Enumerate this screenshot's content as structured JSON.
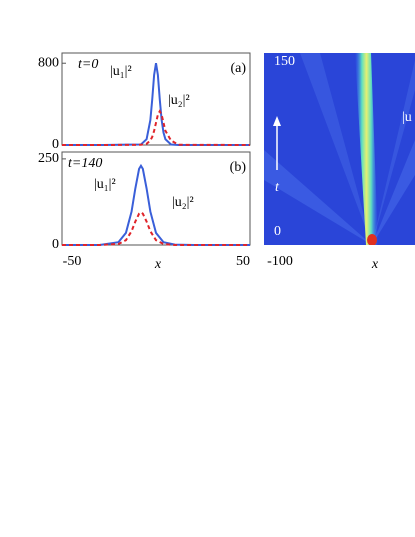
{
  "chart_data": [
    {
      "type": "line",
      "panel_label": "(a)",
      "time_label": "t=0",
      "x": [
        -50,
        -28,
        -8,
        -5,
        -3,
        -2,
        -1,
        0,
        1,
        2,
        3,
        4,
        5,
        8,
        12,
        50
      ],
      "series": [
        {
          "name": "|u₁|²",
          "color": "#3a5fd9",
          "dash": false,
          "values": [
            0,
            0,
            5,
            57,
            244,
            447,
            685,
            800,
            685,
            447,
            244,
            121,
            57,
            5,
            0,
            0
          ]
        },
        {
          "name": "|u₂|²",
          "color": "#e0242a",
          "dash": true,
          "values": [
            0,
            0,
            2,
            12,
            44,
            80,
            139,
            217,
            296,
            330,
            296,
            217,
            139,
            44,
            2,
            0
          ]
        }
      ],
      "xlim": [
        -50,
        50
      ],
      "ylim": [
        0,
        900
      ],
      "yticks": [
        0,
        800
      ]
    },
    {
      "type": "line",
      "panel_label": "(b)",
      "time_label": "t=140",
      "xlabel": "x",
      "x": [
        -50,
        -30,
        -20,
        -16,
        -13,
        -11,
        -9,
        -8,
        -7,
        -5,
        -3,
        0,
        4,
        10,
        20,
        50
      ],
      "series": [
        {
          "name": "|u₁|²",
          "color": "#3a5fd9",
          "dash": false,
          "values": [
            0,
            0,
            8,
            35,
            97,
            164,
            221,
            230,
            221,
            164,
            97,
            35,
            8,
            1,
            0,
            0
          ]
        },
        {
          "name": "|u₂|²",
          "color": "#e0242a",
          "dash": true,
          "values": [
            0,
            0,
            3,
            14,
            40,
            68,
            91,
            95,
            91,
            68,
            40,
            14,
            3,
            0,
            0,
            0
          ]
        }
      ],
      "xlim": [
        -50,
        50
      ],
      "ylim": [
        0,
        270
      ],
      "yticks": [
        0,
        250
      ],
      "xticks": [
        -50,
        50
      ]
    },
    {
      "type": "heatmap",
      "xlabel": "x",
      "ylabel": "t",
      "colorbar_label": "|u",
      "ylim": [
        0,
        150
      ],
      "yticks": [
        0,
        150
      ],
      "xticks": [
        -100
      ]
    }
  ]
}
